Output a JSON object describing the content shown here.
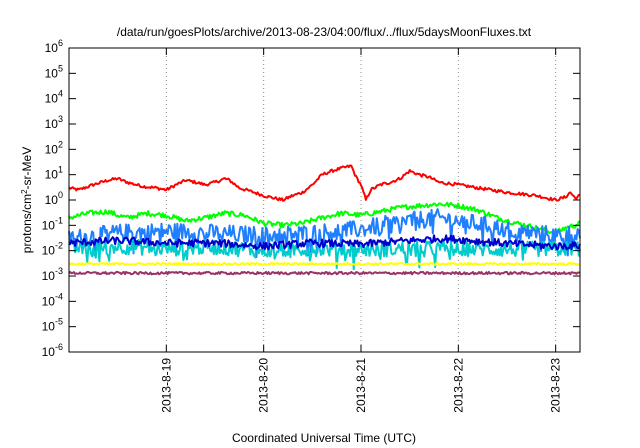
{
  "chart_data": {
    "type": "line",
    "title": "/data/run/goesPlots/archive/2013-08-23/04:00/flux/../flux/5daysMoonFluxes.txt",
    "xlabel": "Coordinated Universal Time (UTC)",
    "ylabel": "protons/cm2-sr-MeV",
    "ylabel_parts": [
      "protons/cm",
      "2",
      "-sr-MeV"
    ],
    "yscale": "log",
    "ylim": [
      1e-06,
      1000000.0
    ],
    "xlim": [
      0,
      5.25
    ],
    "x_unit": "days from 2013-8-18 00:00 UTC",
    "grid": "vertical dotted at date ticks",
    "legend": "none",
    "x_ticks": [
      {
        "x": 1,
        "label": "2013-8-19"
      },
      {
        "x": 2,
        "label": "2013-8-20"
      },
      {
        "x": 3,
        "label": "2013-8-21"
      },
      {
        "x": 4,
        "label": "2013-8-22"
      },
      {
        "x": 5,
        "label": "2013-8-23"
      }
    ],
    "y_ticks": [
      {
        "exp": "-6"
      },
      {
        "exp": "-5"
      },
      {
        "exp": "-4"
      },
      {
        "exp": "-3"
      },
      {
        "exp": "-2"
      },
      {
        "exp": "-1"
      },
      {
        "exp": "0"
      },
      {
        "exp": "1"
      },
      {
        "exp": "2"
      },
      {
        "exp": "3"
      },
      {
        "exp": "4"
      },
      {
        "exp": "5"
      },
      {
        "exp": "6"
      }
    ],
    "series": [
      {
        "color": "#ff0000",
        "width": 2,
        "noise": 0.06,
        "x": [
          0,
          0.1,
          0.25,
          0.4,
          0.5,
          0.6,
          0.75,
          0.9,
          1.0,
          1.1,
          1.2,
          1.3,
          1.4,
          1.5,
          1.6,
          1.65,
          1.75,
          1.9,
          2.0,
          2.1,
          2.2,
          2.3,
          2.4,
          2.5,
          2.6,
          2.7,
          2.8,
          2.9,
          2.95,
          3.0,
          3.05,
          3.1,
          3.2,
          3.3,
          3.4,
          3.5,
          3.6,
          3.7,
          3.8,
          4.0,
          4.2,
          4.5,
          4.8,
          5.0,
          5.1,
          5.15,
          5.2,
          5.25
        ],
        "y": [
          3,
          2.5,
          4,
          6,
          7,
          5,
          3.5,
          3,
          2.5,
          4,
          6,
          5,
          4,
          5,
          7,
          6,
          3,
          2,
          1.5,
          1.2,
          1,
          1.5,
          2,
          4,
          10,
          14,
          18,
          22,
          8,
          4,
          1,
          2.5,
          4,
          5,
          7,
          14,
          10,
          8,
          5,
          4,
          3,
          2,
          1.5,
          1,
          1.3,
          2,
          1.2,
          1.5
        ]
      },
      {
        "color": "#00ff00",
        "width": 2,
        "noise": 0.1,
        "x": [
          0,
          0.2,
          0.4,
          0.5,
          0.6,
          0.8,
          1.0,
          1.2,
          1.4,
          1.6,
          1.8,
          2.0,
          2.2,
          2.4,
          2.6,
          2.8,
          3.0,
          3.2,
          3.4,
          3.6,
          3.8,
          4.0,
          4.2,
          4.4,
          4.6,
          4.8,
          5.0,
          5.1,
          5.2,
          5.25
        ],
        "y": [
          0.2,
          0.3,
          0.35,
          0.25,
          0.2,
          0.3,
          0.25,
          0.15,
          0.2,
          0.3,
          0.25,
          0.12,
          0.1,
          0.12,
          0.2,
          0.3,
          0.25,
          0.35,
          0.5,
          0.6,
          0.7,
          0.6,
          0.4,
          0.2,
          0.12,
          0.08,
          0.05,
          0.08,
          0.1,
          0.12
        ]
      },
      {
        "color": "#1f7fff",
        "width": 2,
        "noise": 0.35,
        "x": [
          0,
          0.5,
          1.0,
          1.5,
          2.0,
          2.5,
          3.0,
          3.2,
          3.5,
          3.8,
          4.0,
          4.3,
          4.6,
          5.0,
          5.25
        ],
        "y": [
          0.03,
          0.05,
          0.06,
          0.05,
          0.04,
          0.05,
          0.07,
          0.1,
          0.15,
          0.2,
          0.15,
          0.1,
          0.06,
          0.04,
          0.05
        ]
      },
      {
        "color": "#00cccc",
        "width": 2,
        "noise": 0.3,
        "x": [
          0,
          0.5,
          1.0,
          1.5,
          2.0,
          2.5,
          3.0,
          3.5,
          4.0,
          4.5,
          5.0,
          5.25
        ],
        "y": [
          0.012,
          0.015,
          0.012,
          0.014,
          0.01,
          0.012,
          0.011,
          0.012,
          0.012,
          0.011,
          0.012,
          0.012
        ]
      },
      {
        "color": "#0000cc",
        "width": 2,
        "noise": 0.15,
        "x": [
          0,
          0.5,
          1.0,
          1.5,
          2.0,
          2.5,
          3.0,
          3.5,
          3.8,
          4.0,
          4.3,
          4.6,
          5.0,
          5.25
        ],
        "y": [
          0.02,
          0.025,
          0.02,
          0.02,
          0.015,
          0.02,
          0.018,
          0.025,
          0.03,
          0.028,
          0.022,
          0.018,
          0.015,
          0.016
        ]
      },
      {
        "color": "#ffff00",
        "width": 2,
        "noise": 0.04,
        "x": [
          0,
          1,
          2,
          3,
          4,
          5,
          5.25
        ],
        "y": [
          0.003,
          0.003,
          0.003,
          0.003,
          0.003,
          0.003,
          0.003
        ]
      },
      {
        "color": "#993366",
        "width": 2,
        "noise": 0.05,
        "x": [
          0,
          1,
          2,
          3,
          4,
          5,
          5.25
        ],
        "y": [
          0.0013,
          0.0013,
          0.0013,
          0.0013,
          0.0013,
          0.0013,
          0.0013
        ]
      }
    ]
  }
}
